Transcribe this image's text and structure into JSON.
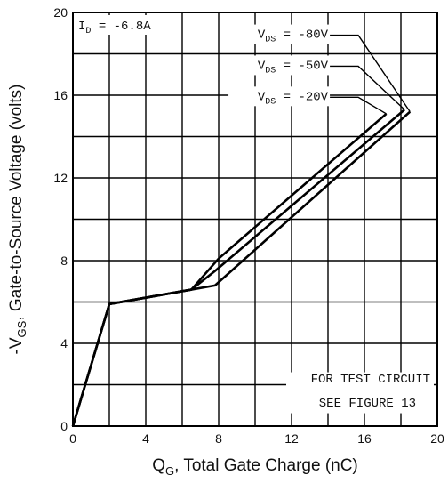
{
  "chart_data": {
    "type": "line",
    "xlabel": {
      "pre": "Q",
      "sub": "G",
      "post": ", Total Gate Charge (nC)"
    },
    "ylabel": {
      "pre": "-V",
      "sub": "GS",
      "post": ", Gate-to-Source Voltage (volts)"
    },
    "xlim": [
      0,
      20
    ],
    "ylim": [
      0,
      20
    ],
    "x_ticks": [
      0,
      4,
      8,
      12,
      16,
      20
    ],
    "y_ticks": [
      0,
      4,
      8,
      12,
      16,
      20
    ],
    "grid": true,
    "annotation_id": {
      "pre": "I",
      "sub": "D",
      "post": " = -6.8A"
    },
    "test_note": [
      "FOR TEST CIRCUIT",
      "SEE FIGURE 13"
    ],
    "series": [
      {
        "label": {
          "pre": "V",
          "sub": "DS",
          "post": " = -80V"
        },
        "points": [
          [
            0,
            0
          ],
          [
            2,
            5.9
          ],
          [
            6.5,
            6.6
          ],
          [
            7.8,
            6.8
          ],
          [
            18.5,
            15.2
          ]
        ],
        "leader_from": [
          14.1,
          18.9
        ]
      },
      {
        "label": {
          "pre": "V",
          "sub": "DS",
          "post": " = -50V"
        },
        "points": [
          [
            0,
            0
          ],
          [
            2,
            5.9
          ],
          [
            6.5,
            6.6
          ],
          [
            7.8,
            7.5
          ],
          [
            18.2,
            15.3
          ]
        ],
        "leader_from": [
          14.1,
          17.4
        ]
      },
      {
        "label": {
          "pre": "V",
          "sub": "DS",
          "post": " = -20V"
        },
        "points": [
          [
            0,
            0
          ],
          [
            2,
            5.9
          ],
          [
            6.5,
            6.6
          ],
          [
            8.0,
            8.1
          ],
          [
            17.2,
            15.1
          ]
        ],
        "leader_from": [
          14.1,
          15.9
        ]
      }
    ]
  }
}
